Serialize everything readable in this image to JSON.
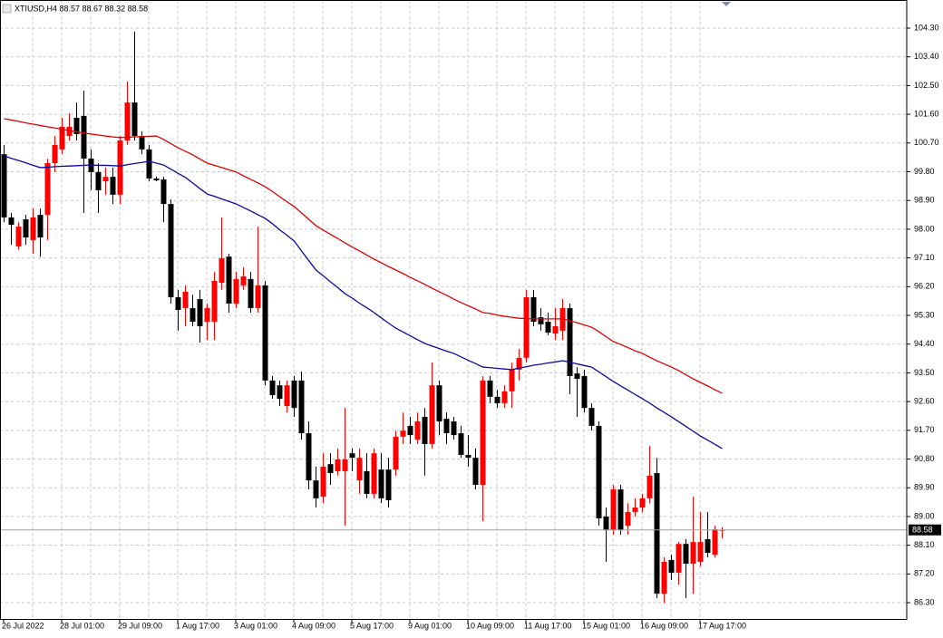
{
  "chart_data": {
    "type": "candlestick",
    "title": "XTIUSD,H4 88.57 88.67 88.32 88.58",
    "categories": [
      "26 Jul 2022",
      null,
      null,
      null,
      null,
      null,
      null,
      null,
      "28 Jul 01:00",
      null,
      null,
      null,
      null,
      null,
      null,
      null,
      "29 Jul 09:00",
      null,
      null,
      null,
      null,
      null,
      null,
      null,
      "1 Aug 17:00",
      null,
      null,
      null,
      null,
      null,
      null,
      null,
      "3 Aug 01:00",
      null,
      null,
      null,
      null,
      null,
      null,
      null,
      "4 Aug 09:00",
      null,
      null,
      null,
      null,
      null,
      null,
      null,
      "5 Aug 17:00",
      null,
      null,
      null,
      null,
      null,
      null,
      null,
      "9 Aug 01:00",
      null,
      null,
      null,
      null,
      null,
      null,
      null,
      "10 Aug 09:00",
      null,
      null,
      null,
      null,
      null,
      null,
      null,
      "11 Aug 17:00",
      null,
      null,
      null,
      null,
      null,
      null,
      null,
      "15 Aug 01:00",
      null,
      null,
      null,
      null,
      null,
      null,
      null,
      "16 Aug 09:00",
      null,
      null,
      null,
      null,
      null,
      null,
      null,
      "17 Aug 17:00",
      null,
      null,
      null
    ],
    "open": [
      100.35,
      98.37,
      97.46,
      98.31,
      97.66,
      98.45,
      98.45,
      100.07,
      100.5,
      100.92,
      101.49,
      101.55,
      100.21,
      99.79,
      99.5,
      99.64,
      99.08,
      100.78,
      101.97,
      100.92,
      100.5,
      99.59,
      99.56,
      98.79,
      95.87,
      95.53,
      95.53,
      95.81,
      95.1,
      95.1,
      96.32,
      97.14,
      95.67,
      96.24,
      96.44,
      95.53,
      96.24,
      93.26,
      93.11,
      92.46,
      93.26,
      93.26,
      91.61,
      90.13,
      89.62,
      90.64,
      90.42,
      90.42,
      90.98,
      90.13,
      90.42,
      89.71,
      90.47,
      90.47,
      90.47,
      91.5,
      91.84,
      91.41,
      92.12,
      91.27,
      93.11,
      92.06,
      91.98,
      91.61,
      90.93,
      90.84,
      89.99,
      93.26,
      92.75,
      92.55,
      92.92,
      93.6,
      93.97,
      95.87,
      95.24,
      95.1,
      94.73,
      94.82,
      95.53,
      93.48,
      93.4,
      92.4,
      91.84,
      89.0,
      88.57,
      89.85,
      88.71,
      89.14,
      89.28,
      89.57,
      90.36,
      86.58,
      87.64,
      87.24,
      88.14,
      87.52,
      87.58,
      88.29,
      87.8,
      88.57
    ],
    "high": [
      100.64,
      98.51,
      98.22,
      98.45,
      98.65,
      98.65,
      100.21,
      100.92,
      101.49,
      101.63,
      101.97,
      102.34,
      100.5,
      100.07,
      99.93,
      99.93,
      100.92,
      102.63,
      104.19,
      101.06,
      100.64,
      99.64,
      99.64,
      98.93,
      96.1,
      96.24,
      95.95,
      96.1,
      95.67,
      96.66,
      98.37,
      97.23,
      96.66,
      96.81,
      96.66,
      98.08,
      96.38,
      93.4,
      93.26,
      93.26,
      93.4,
      93.54,
      91.98,
      90.56,
      90.98,
      90.98,
      91.13,
      92.4,
      91.13,
      91.13,
      90.98,
      91.13,
      90.98,
      90.84,
      91.69,
      92.26,
      92.12,
      92.26,
      92.4,
      93.82,
      93.26,
      92.26,
      92.12,
      91.84,
      91.55,
      91.13,
      93.4,
      93.4,
      92.97,
      93.11,
      93.82,
      94.25,
      96.1,
      96.1,
      95.53,
      95.39,
      95.53,
      95.81,
      95.67,
      93.68,
      93.6,
      92.55,
      91.98,
      89.28,
      89.99,
      89.99,
      89.42,
      89.57,
      89.71,
      91.21,
      90.84,
      87.72,
      87.8,
      88.2,
      88.29,
      89.62,
      89.14,
      89.14,
      88.71,
      88.67
    ],
    "low": [
      98.22,
      97.51,
      97.37,
      97.51,
      97.23,
      97.14,
      97.66,
      99.79,
      100.35,
      100.78,
      100.78,
      98.51,
      99.22,
      98.51,
      99.08,
      98.79,
      98.79,
      100.64,
      100.78,
      100.35,
      99.5,
      99.5,
      98.22,
      95.67,
      94.82,
      94.96,
      94.96,
      94.45,
      94.53,
      94.53,
      96.1,
      95.39,
      95.53,
      96.1,
      95.39,
      95.39,
      93.11,
      92.69,
      92.46,
      92.26,
      92.12,
      91.41,
      89.85,
      89.28,
      89.42,
      89.99,
      90.28,
      88.71,
      90.42,
      89.71,
      89.57,
      89.57,
      89.42,
      89.28,
      90.28,
      91.27,
      91.27,
      91.27,
      90.28,
      91.13,
      91.55,
      91.27,
      91.41,
      90.84,
      90.56,
      89.85,
      88.86,
      92.55,
      92.4,
      92.4,
      92.4,
      93.26,
      93.82,
      94.96,
      94.82,
      94.68,
      94.53,
      94.53,
      92.83,
      92.12,
      92.26,
      91.69,
      88.71,
      87.58,
      88.43,
      88.43,
      88.43,
      89.0,
      89.14,
      89.42,
      86.44,
      86.3,
      87.01,
      86.87,
      86.44,
      86.58,
      87.44,
      87.72,
      87.72,
      88.32
    ],
    "close": [
      98.37,
      98.14,
      98.08,
      97.74,
      98.37,
      97.74,
      100.07,
      100.64,
      101.21,
      101.21,
      100.98,
      100.21,
      99.79,
      99.22,
      99.64,
      99.08,
      100.78,
      101.97,
      100.92,
      100.5,
      99.59,
      99.53,
      98.79,
      95.87,
      95.47,
      96.04,
      95.1,
      94.96,
      95.53,
      96.38,
      97.09,
      95.67,
      96.44,
      96.52,
      95.53,
      96.24,
      93.26,
      92.8,
      92.69,
      93.11,
      92.4,
      91.61,
      90.13,
      89.57,
      90.56,
      90.36,
      90.79,
      90.79,
      90.84,
      90.84,
      89.71,
      90.98,
      89.57,
      89.51,
      91.5,
      91.69,
      91.55,
      91.98,
      91.27,
      93.11,
      91.98,
      91.61,
      91.55,
      90.93,
      90.84,
      89.99,
      93.26,
      92.75,
      92.55,
      92.92,
      93.6,
      93.97,
      95.87,
      95.1,
      95.02,
      94.76,
      94.96,
      95.53,
      93.4,
      93.31,
      92.4,
      91.84,
      88.94,
      88.57,
      89.85,
      88.57,
      89.14,
      89.28,
      89.57,
      90.28,
      86.58,
      87.58,
      87.24,
      88.14,
      87.52,
      88.2,
      88.2,
      87.86,
      88.6,
      88.58
    ],
    "up_color": "#ff0000",
    "down_color": "#000000",
    "overlays": [
      {
        "type": "line",
        "color": "#e00000",
        "values": [
          101.46,
          101.42,
          101.38,
          101.33,
          101.29,
          101.25,
          101.21,
          101.17,
          101.13,
          101.09,
          101.05,
          101.01,
          100.98,
          100.95,
          100.92,
          100.89,
          100.87,
          100.88,
          100.89,
          100.9,
          100.91,
          100.92,
          100.81,
          100.68,
          100.55,
          100.44,
          100.33,
          100.2,
          100.07,
          100.0,
          99.93,
          99.86,
          99.79,
          99.67,
          99.56,
          99.45,
          99.33,
          99.18,
          99.02,
          98.86,
          98.71,
          98.51,
          98.31,
          98.11,
          97.97,
          97.84,
          97.71,
          97.57,
          97.44,
          97.32,
          97.19,
          97.06,
          96.95,
          96.83,
          96.72,
          96.61,
          96.49,
          96.38,
          96.27,
          96.15,
          96.04,
          95.93,
          95.81,
          95.7,
          95.6,
          95.5,
          95.39,
          95.36,
          95.31,
          95.27,
          95.24,
          95.21,
          95.2,
          95.19,
          95.19,
          95.19,
          95.19,
          95.19,
          95.13,
          95.07,
          95.0,
          94.93,
          94.79,
          94.63,
          94.48,
          94.39,
          94.29,
          94.19,
          94.11,
          93.99,
          93.88,
          93.78,
          93.68,
          93.57,
          93.44,
          93.31,
          93.2,
          93.09,
          92.97,
          92.86
        ]
      },
      {
        "type": "line",
        "color": "#0a0aa0",
        "values": [
          100.3,
          100.22,
          100.15,
          100.08,
          100.0,
          99.93,
          99.94,
          99.96,
          99.97,
          99.98,
          99.99,
          100.0,
          100.01,
          100.0,
          100.0,
          99.99,
          99.98,
          100.02,
          100.06,
          100.09,
          100.13,
          100.07,
          100.01,
          99.88,
          99.75,
          99.62,
          99.45,
          99.27,
          99.1,
          99.03,
          98.95,
          98.87,
          98.79,
          98.68,
          98.57,
          98.45,
          98.34,
          98.17,
          97.98,
          97.81,
          97.63,
          97.32,
          97.02,
          96.72,
          96.54,
          96.35,
          96.17,
          95.98,
          95.84,
          95.68,
          95.54,
          95.39,
          95.22,
          95.06,
          94.9,
          94.78,
          94.66,
          94.54,
          94.42,
          94.34,
          94.26,
          94.18,
          94.11,
          94.0,
          93.89,
          93.79,
          93.68,
          93.66,
          93.64,
          93.62,
          93.6,
          93.65,
          93.69,
          93.74,
          93.77,
          93.81,
          93.84,
          93.88,
          93.83,
          93.78,
          93.73,
          93.68,
          93.53,
          93.38,
          93.23,
          93.09,
          92.96,
          92.82,
          92.69,
          92.55,
          92.4,
          92.26,
          92.12,
          91.97,
          91.82,
          91.67,
          91.52,
          91.39,
          91.26,
          91.13
        ]
      }
    ],
    "last_price": 88.58,
    "ylim": [
      85.79,
      105.18
    ],
    "yticks": [
      {
        "value": 104.3,
        "label": "104.30"
      },
      {
        "value": 103.4,
        "label": "103.40"
      },
      {
        "value": 102.5,
        "label": "102.50"
      },
      {
        "value": 101.6,
        "label": "101.60"
      },
      {
        "value": 100.7,
        "label": "100.70"
      },
      {
        "value": 99.8,
        "label": "99.80"
      },
      {
        "value": 98.9,
        "label": "98.90"
      },
      {
        "value": 98.0,
        "label": "98.00"
      },
      {
        "value": 97.1,
        "label": "97.10"
      },
      {
        "value": 96.2,
        "label": "96.20"
      },
      {
        "value": 95.3,
        "label": "95.30"
      },
      {
        "value": 94.4,
        "label": "94.40"
      },
      {
        "value": 93.5,
        "label": "93.50"
      },
      {
        "value": 92.6,
        "label": "92.60"
      },
      {
        "value": 91.7,
        "label": "91.70"
      },
      {
        "value": 90.8,
        "label": "90.80"
      },
      {
        "value": 89.9,
        "label": "89.90"
      },
      {
        "value": 89.0,
        "label": "89.00"
      },
      {
        "value": 88.1,
        "label": "88.10"
      },
      {
        "value": 87.2,
        "label": "87.20"
      },
      {
        "value": 86.3,
        "label": "86.30"
      }
    ],
    "grid": true
  }
}
